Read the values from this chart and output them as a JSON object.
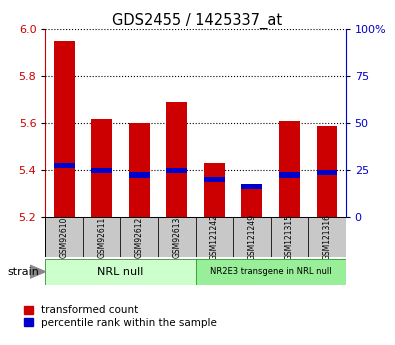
{
  "title": "GDS2455 / 1425337_at",
  "categories": [
    "GSM92610",
    "GSM92611",
    "GSM92612",
    "GSM92613",
    "GSM121242",
    "GSM121249",
    "GSM121315",
    "GSM121316"
  ],
  "red_values": [
    5.95,
    5.62,
    5.6,
    5.69,
    5.43,
    5.33,
    5.61,
    5.59
  ],
  "blue_values": [
    5.42,
    5.4,
    5.38,
    5.4,
    5.36,
    5.33,
    5.38,
    5.39
  ],
  "ylim": [
    5.2,
    6.0
  ],
  "yticks_left": [
    5.2,
    5.4,
    5.6,
    5.8,
    6.0
  ],
  "yticks_right": [
    0,
    25,
    50,
    75,
    100
  ],
  "ytick_labels_right": [
    "0",
    "25",
    "50",
    "75",
    "100%"
  ],
  "group1_label": "NRL null",
  "group2_label": "NR2E3 transgene in NRL null",
  "group1_count": 4,
  "group2_count": 4,
  "strain_label": "strain",
  "legend_red": "transformed count",
  "legend_blue": "percentile rank within the sample",
  "red_color": "#cc0000",
  "blue_color": "#0000cc",
  "group1_bg": "#ccffcc",
  "group2_bg": "#99ee99",
  "bar_bg": "#c8c8c8",
  "grid_color": "#000000",
  "bar_width": 0.55,
  "blue_bar_height": 0.022
}
